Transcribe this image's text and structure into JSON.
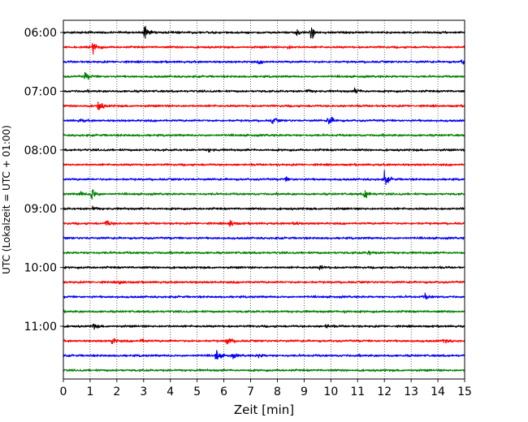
{
  "chart_data": {
    "type": "line",
    "subtype": "helicorder",
    "xlabel": "Zeit  [min]",
    "ylabel": "UTC (Lokalzeit = UTC + 01:00)",
    "xlim": [
      0,
      15
    ],
    "x_ticks": [
      0,
      1,
      2,
      3,
      4,
      5,
      6,
      7,
      8,
      9,
      10,
      11,
      12,
      13,
      14,
      15
    ],
    "y_tick_labels": [
      "06:00",
      "07:00",
      "08:00",
      "09:00",
      "10:00",
      "11:00"
    ],
    "grid": "vertical dotted lines at each minute",
    "legend": "none",
    "row_interval_minutes": 15,
    "colors": [
      "#000000",
      "#ff0000",
      "#0000ff",
      "#008000"
    ],
    "traces": [
      {
        "start": "06:00",
        "color": "#000000",
        "events": [
          {
            "x": 3.0,
            "amp": 1.0
          },
          {
            "x": 9.25,
            "amp": 0.9
          },
          {
            "x": 8.7,
            "amp": 0.35
          }
        ]
      },
      {
        "start": "06:15",
        "color": "#ff0000",
        "events": [
          {
            "x": 1.1,
            "amp": 0.8
          },
          {
            "x": 8.4,
            "amp": 0.25
          }
        ]
      },
      {
        "start": "06:30",
        "color": "#0000ff",
        "events": [
          {
            "x": 14.9,
            "amp": 0.35
          },
          {
            "x": 7.3,
            "amp": 0.2
          }
        ]
      },
      {
        "start": "06:45",
        "color": "#008000",
        "events": [
          {
            "x": 0.8,
            "amp": 0.55
          }
        ]
      },
      {
        "start": "07:00",
        "color": "#000000",
        "events": [
          {
            "x": 10.9,
            "amp": 0.4
          },
          {
            "x": 9.1,
            "amp": 0.25
          }
        ]
      },
      {
        "start": "07:15",
        "color": "#ff0000",
        "events": [
          {
            "x": 1.3,
            "amp": 0.75
          }
        ]
      },
      {
        "start": "07:30",
        "color": "#0000ff",
        "events": [
          {
            "x": 9.9,
            "amp": 0.9
          },
          {
            "x": 7.8,
            "amp": 0.45
          },
          {
            "x": 0.6,
            "amp": 0.25
          }
        ]
      },
      {
        "start": "07:45",
        "color": "#008000",
        "events": []
      },
      {
        "start": "08:00",
        "color": "#000000",
        "events": [
          {
            "x": 5.4,
            "amp": 0.25
          }
        ]
      },
      {
        "start": "08:15",
        "color": "#ff0000",
        "events": []
      },
      {
        "start": "08:30",
        "color": "#0000ff",
        "events": [
          {
            "x": 12.0,
            "amp": 0.95
          },
          {
            "x": 8.3,
            "amp": 0.25
          }
        ]
      },
      {
        "start": "08:45",
        "color": "#008000",
        "events": [
          {
            "x": 1.05,
            "amp": 1.0
          },
          {
            "x": 11.25,
            "amp": 0.8
          },
          {
            "x": 0.6,
            "amp": 0.4
          }
        ]
      },
      {
        "start": "09:00",
        "color": "#000000",
        "events": [
          {
            "x": 1.1,
            "amp": 0.25
          }
        ]
      },
      {
        "start": "09:15",
        "color": "#ff0000",
        "events": [
          {
            "x": 6.2,
            "amp": 0.6
          },
          {
            "x": 1.6,
            "amp": 0.5
          },
          {
            "x": 8.6,
            "amp": 0.25
          }
        ]
      },
      {
        "start": "09:30",
        "color": "#0000ff",
        "events": []
      },
      {
        "start": "09:45",
        "color": "#008000",
        "events": [
          {
            "x": 11.4,
            "amp": 0.3
          }
        ]
      },
      {
        "start": "10:00",
        "color": "#000000",
        "events": [
          {
            "x": 9.6,
            "amp": 0.3
          }
        ]
      },
      {
        "start": "10:15",
        "color": "#ff0000",
        "events": [
          {
            "x": 2.1,
            "amp": 0.3
          }
        ]
      },
      {
        "start": "10:30",
        "color": "#0000ff",
        "events": [
          {
            "x": 13.5,
            "amp": 0.4
          }
        ]
      },
      {
        "start": "10:45",
        "color": "#008000",
        "events": [
          {
            "x": 10.5,
            "amp": 0.2
          }
        ]
      },
      {
        "start": "11:00",
        "color": "#000000",
        "events": [
          {
            "x": 1.1,
            "amp": 0.4
          },
          {
            "x": 9.8,
            "amp": 0.25
          }
        ]
      },
      {
        "start": "11:15",
        "color": "#ff0000",
        "events": [
          {
            "x": 6.1,
            "amp": 0.75
          },
          {
            "x": 1.8,
            "amp": 0.55
          },
          {
            "x": 14.2,
            "amp": 0.4
          },
          {
            "x": 2.9,
            "amp": 0.3
          }
        ]
      },
      {
        "start": "11:30",
        "color": "#0000ff",
        "events": [
          {
            "x": 5.7,
            "amp": 0.9
          },
          {
            "x": 6.3,
            "amp": 0.35
          },
          {
            "x": 7.3,
            "amp": 0.25
          }
        ]
      },
      {
        "start": "11:45",
        "color": "#008000",
        "events": []
      }
    ]
  }
}
